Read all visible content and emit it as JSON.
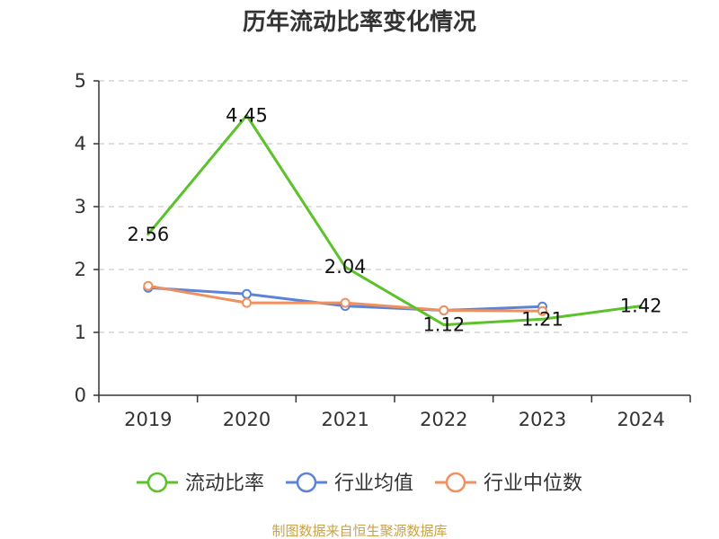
{
  "chart_data": {
    "type": "line",
    "title": "历年流动比率变化情况",
    "xlabel": "",
    "ylabel": "",
    "categories": [
      "2019",
      "2020",
      "2021",
      "2022",
      "2023",
      "2024"
    ],
    "ylim": [
      0,
      5
    ],
    "yticks": [
      0,
      1,
      2,
      3,
      4,
      5
    ],
    "grid": true,
    "legend_position": "bottom",
    "series": [
      {
        "name": "流动比率",
        "color": "#5cc22b",
        "values": [
          2.56,
          4.45,
          2.04,
          1.12,
          1.21,
          1.42
        ],
        "labels": [
          "2.56",
          "4.45",
          "2.04",
          "1.12",
          "1.21",
          "1.42"
        ]
      },
      {
        "name": "行业均值",
        "color": "#5b84d8",
        "values": [
          1.71,
          1.61,
          1.42,
          1.35,
          1.41,
          null
        ]
      },
      {
        "name": "行业中位数",
        "color": "#f0905e",
        "values": [
          1.74,
          1.47,
          1.47,
          1.35,
          1.34,
          null
        ]
      }
    ]
  },
  "source": {
    "text": "制图数据来自恒生聚源数据库",
    "color": "#c8a24a"
  }
}
